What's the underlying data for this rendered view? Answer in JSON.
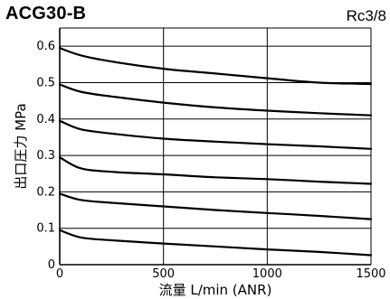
{
  "header": {
    "model": "ACG30-B",
    "port": "Rc3/8"
  },
  "chart_data": {
    "type": "line",
    "xlabel": "流量 L/min (ANR)",
    "ylabel": "出口圧力 MPa",
    "xlim": [
      0,
      1500
    ],
    "ylim": [
      0,
      0.65
    ],
    "xticks": [
      "0",
      "500",
      "1000",
      "1500"
    ],
    "yticks": [
      "0",
      "0.1",
      "0.2",
      "0.3",
      "0.4",
      "0.5",
      "0.6"
    ],
    "grid": true,
    "line_color": "#000000",
    "series": [
      {
        "x": [
          0,
          100,
          250,
          500,
          750,
          1000,
          1250,
          1500
        ],
        "values": [
          0.595,
          0.575,
          0.558,
          0.538,
          0.525,
          0.512,
          0.5,
          0.496
        ]
      },
      {
        "x": [
          0,
          100,
          250,
          500,
          750,
          1000,
          1250,
          1500
        ],
        "values": [
          0.495,
          0.475,
          0.462,
          0.445,
          0.432,
          0.423,
          0.416,
          0.41
        ]
      },
      {
        "x": [
          0,
          100,
          250,
          500,
          750,
          1000,
          1250,
          1500
        ],
        "values": [
          0.395,
          0.372,
          0.36,
          0.346,
          0.338,
          0.331,
          0.325,
          0.318
        ]
      },
      {
        "x": [
          0,
          100,
          250,
          500,
          750,
          1000,
          1250,
          1500
        ],
        "values": [
          0.295,
          0.265,
          0.255,
          0.248,
          0.24,
          0.235,
          0.228,
          0.222
        ]
      },
      {
        "x": [
          0,
          100,
          250,
          500,
          750,
          1000,
          1250,
          1500
        ],
        "values": [
          0.195,
          0.178,
          0.17,
          0.16,
          0.15,
          0.142,
          0.134,
          0.125
        ]
      },
      {
        "x": [
          0,
          100,
          250,
          500,
          750,
          1000,
          1250,
          1500
        ],
        "values": [
          0.095,
          0.075,
          0.067,
          0.058,
          0.05,
          0.042,
          0.035,
          0.026
        ]
      }
    ]
  }
}
